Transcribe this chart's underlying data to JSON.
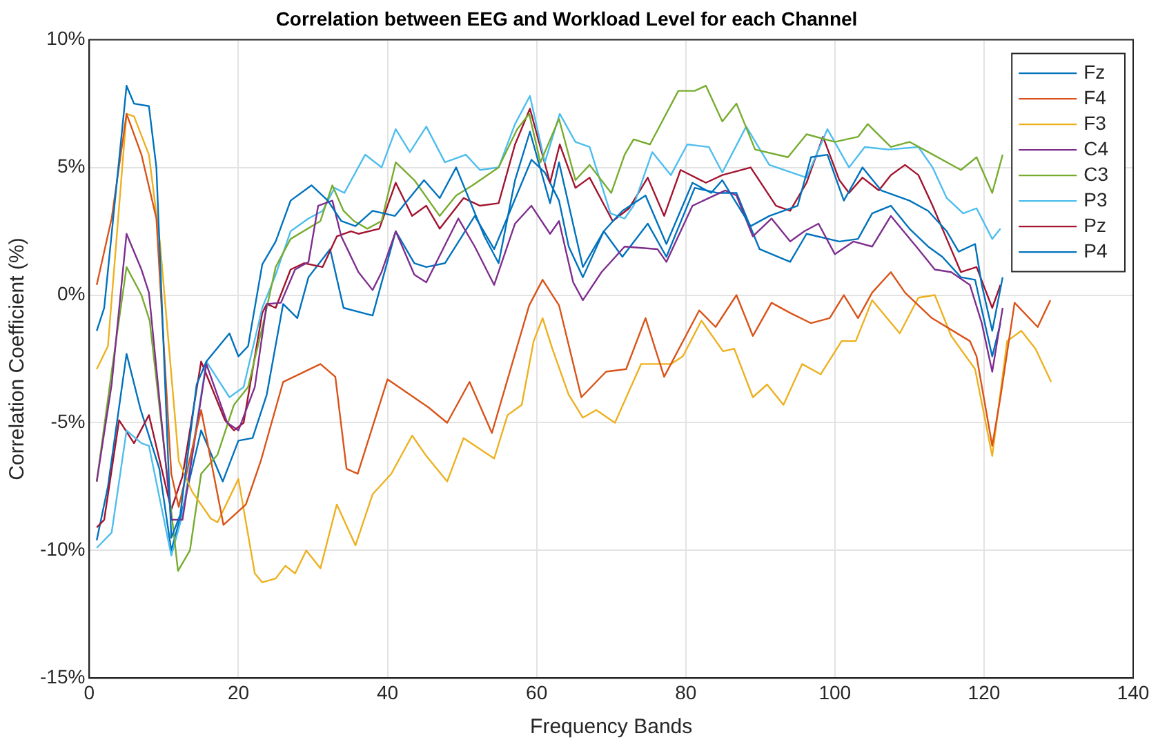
{
  "chart_data": {
    "type": "line",
    "title": "Correlation between EEG and Workload Level for each Channel",
    "xlabel": "Frequency Bands",
    "ylabel": "Correlation Coefficient (%)",
    "xlim": [
      0,
      140
    ],
    "xticks": [
      0,
      20,
      40,
      60,
      80,
      100,
      120,
      140
    ],
    "ylim": [
      -15,
      10
    ],
    "yticks": [
      {
        "value": -15,
        "label": "-15%"
      },
      {
        "value": -10,
        "label": "-10%"
      },
      {
        "value": -5,
        "label": "-5%"
      },
      {
        "value": 0,
        "label": "0%"
      },
      {
        "value": 5,
        "label": "5%"
      },
      {
        "value": 10,
        "label": "10%"
      }
    ],
    "grid": true,
    "legend": "top right",
    "marker": "none",
    "line_style": "solid",
    "series": [
      {
        "name": "Fz",
        "color": "#0072bd",
        "x": [
          1,
          2,
          5,
          6,
          8,
          9,
          11,
          12.2,
          14.4,
          15.7,
          18.8,
          20,
          21.3,
          23.2,
          25,
          27,
          29.8,
          32,
          33.8,
          35.7,
          38,
          41,
          44.9,
          47,
          49.2,
          53,
          54.9,
          57.1,
          59.1,
          61.8,
          63,
          66.2,
          69,
          71.5,
          74.6,
          77.4,
          80.9,
          83.4,
          84.9,
          88.7,
          91.2,
          95,
          96.8,
          99,
          101.2,
          103.7,
          106.2,
          110,
          112.5,
          115,
          116.6,
          118.8,
          119.7,
          121.1,
          122.5
        ],
        "values": [
          -1.4,
          -0.5,
          8.2,
          7.5,
          7.4,
          5,
          -9.5,
          -8.6,
          -3.5,
          -2.6,
          -1.5,
          -2.4,
          -2,
          1.2,
          2.1,
          3.7,
          4.3,
          3.7,
          2.9,
          2.7,
          3.3,
          3.1,
          4.5,
          3.8,
          5,
          2.3,
          1.25,
          4.5,
          6.4,
          3.6,
          5.2,
          1.1,
          2.5,
          3.3,
          3.9,
          2,
          4.4,
          4,
          4.5,
          2.7,
          3.1,
          3.5,
          5.4,
          5.5,
          3.7,
          5,
          4.1,
          3.7,
          3.3,
          2.5,
          1.7,
          2,
          0.4,
          -1.4,
          0.7
        ]
      },
      {
        "name": "F4",
        "color": "#d95319",
        "x": [
          1,
          3,
          5,
          7,
          9,
          11,
          12,
          15,
          18,
          21,
          23,
          26,
          31,
          33,
          34.5,
          36,
          40,
          45.5,
          48,
          51,
          54,
          59,
          60.8,
          63,
          66,
          69.3,
          72,
          74.6,
          77.1,
          81.8,
          84,
          86.8,
          89,
          91.5,
          94,
          96.8,
          99.3,
          101.2,
          103.1,
          105,
          107.5,
          109.4,
          113,
          118.1,
          119,
          121.1,
          122.2,
          124.1,
          127.2,
          128.9
        ],
        "values": [
          0.4,
          3,
          7.1,
          5.5,
          3,
          -7,
          -8.3,
          -4.5,
          -9,
          -8.2,
          -6.5,
          -3.4,
          -2.7,
          -3.2,
          -6.8,
          -7,
          -3.3,
          -4.4,
          -5,
          -3.4,
          -5.4,
          -0.4,
          0.6,
          -0.4,
          -4,
          -3,
          -2.9,
          -0.9,
          -3.2,
          -0.6,
          -1.25,
          0,
          -1.6,
          -0.3,
          -0.7,
          -1.1,
          -0.9,
          0,
          -0.9,
          0.1,
          0.9,
          0.1,
          -0.9,
          -1.8,
          -2.4,
          -5.9,
          -4,
          -0.3,
          -1.25,
          -0.2
        ]
      },
      {
        "name": "F3",
        "color": "#edb120",
        "x": [
          1,
          2.5,
          5,
          6,
          8,
          9.5,
          12,
          13.8,
          16.3,
          17.2,
          20,
          22.2,
          23.2,
          25,
          26.3,
          27.6,
          29.1,
          31,
          33.2,
          35.7,
          38,
          40.5,
          43.3,
          45.2,
          48,
          50.2,
          54.3,
          56.1,
          58,
          59.6,
          60.8,
          62.1,
          64.3,
          66.2,
          68,
          70.5,
          74,
          78,
          79.6,
          82.1,
          85,
          86.5,
          89,
          90.9,
          93.1,
          95.6,
          98.1,
          100.9,
          102.8,
          105,
          108.7,
          111.2,
          113.4,
          115.6,
          118.8,
          121.1,
          123.1,
          125,
          126.9,
          129
        ],
        "values": [
          -2.9,
          -2,
          7.1,
          7,
          5.5,
          2,
          -6.5,
          -7.7,
          -8.75,
          -8.9,
          -7.2,
          -10.9,
          -11.25,
          -11.1,
          -10.6,
          -10.9,
          -10,
          -10.7,
          -8.2,
          -9.8,
          -7.8,
          -7,
          -5.5,
          -6.3,
          -7.3,
          -5.6,
          -6.4,
          -4.7,
          -4.3,
          -1.8,
          -0.9,
          -2.1,
          -3.9,
          -4.8,
          -4.5,
          -5,
          -2.7,
          -2.7,
          -2.4,
          -1,
          -2.2,
          -2.1,
          -4,
          -3.5,
          -4.3,
          -2.7,
          -3.1,
          -1.8,
          -1.8,
          -0.2,
          -1.5,
          -0.1,
          0,
          -1.6,
          -2.9,
          -6.3,
          -1.8,
          -1.4,
          -2.1,
          -3.4
        ]
      },
      {
        "name": "C4",
        "color": "#7e2f8e",
        "x": [
          1,
          3,
          5,
          7,
          8,
          11,
          12.5,
          15.7,
          18.5,
          20,
          22.2,
          23.8,
          25.7,
          27.6,
          29.4,
          30.7,
          32.6,
          33.8,
          36.1,
          38,
          39.2,
          41.1,
          43.6,
          45.2,
          49.5,
          51.7,
          54.3,
          57.1,
          59.3,
          61.8,
          63,
          64.9,
          66.2,
          68.7,
          71.8,
          76.2,
          77.4,
          80.9,
          85.3,
          86.8,
          89,
          91.5,
          94,
          95.9,
          97.8,
          100,
          102.5,
          105,
          107.5,
          111.2,
          113.4,
          115.6,
          118.1,
          119.7,
          121.1,
          122.5
        ],
        "values": [
          -7.3,
          -3.5,
          2.4,
          1,
          0.1,
          -8.8,
          -8.8,
          -2.7,
          -5,
          -5.3,
          -3.6,
          -0.35,
          -0.3,
          1,
          1.3,
          3.5,
          3.7,
          2.3,
          0.9,
          0.2,
          0.9,
          2.5,
          0.8,
          0.5,
          3,
          1.9,
          0.4,
          2.8,
          3.5,
          2.4,
          2.9,
          0.5,
          -0.2,
          0.9,
          1.9,
          1.8,
          1.3,
          3.5,
          4.1,
          3.9,
          2.3,
          3,
          2.1,
          2.5,
          2.8,
          1.6,
          2.1,
          1.9,
          3.1,
          1.8,
          1,
          0.9,
          0.4,
          -1.1,
          -3,
          -0.5
        ]
      },
      {
        "name": "C3",
        "color": "#77ac30",
        "x": [
          1,
          3,
          5,
          7,
          8.1,
          11.9,
          13.5,
          15,
          17.2,
          19.4,
          21.3,
          23.5,
          25,
          27,
          31,
          32.6,
          34.1,
          35.5,
          37.3,
          39.2,
          41.1,
          43.6,
          47,
          49.2,
          51.4,
          54.9,
          57.4,
          59,
          60.5,
          63,
          65.2,
          67.1,
          70,
          71.8,
          73,
          75.2,
          79,
          81.2,
          82.7,
          84.9,
          86.8,
          89.3,
          93.7,
          96.2,
          100,
          103.1,
          104.4,
          107.5,
          110,
          111.9,
          116.9,
          119,
          121.1,
          122.5
        ],
        "values": [
          -7.3,
          -3,
          1.1,
          0,
          -1,
          -10.8,
          -10,
          -7,
          -6.25,
          -4.3,
          -3.6,
          -0.9,
          1.1,
          2.2,
          2.9,
          4.3,
          3.3,
          2.9,
          2.6,
          2.9,
          5.2,
          4.5,
          3.1,
          3.9,
          4.3,
          5,
          6.5,
          7.1,
          5.2,
          6.9,
          4.5,
          5.1,
          4,
          5.5,
          6.1,
          5.9,
          8,
          8,
          8.2,
          6.8,
          7.5,
          5.7,
          5.4,
          6.3,
          6,
          6.2,
          6.7,
          5.8,
          6,
          5.7,
          4.9,
          5.4,
          4,
          5.5
        ]
      },
      {
        "name": "P3",
        "color": "#4dbeee",
        "x": [
          1,
          3,
          5,
          7,
          8,
          11,
          12.5,
          15.7,
          18.8,
          20.7,
          23.2,
          25,
          27,
          29.4,
          31.3,
          32.9,
          34.2,
          37,
          39.2,
          41.1,
          43,
          45.2,
          47.7,
          50.5,
          52.4,
          54.9,
          57.1,
          59.1,
          61.1,
          63.1,
          65.2,
          67.1,
          69.9,
          71.8,
          73,
          75.5,
          78,
          80.2,
          83.1,
          84.9,
          88.1,
          91.2,
          96.2,
          99,
          101.9,
          104,
          107.2,
          111.2,
          113.1,
          115,
          117.2,
          119,
          121.1,
          122.2
        ],
        "values": [
          -9.9,
          -9.3,
          -5.3,
          -5.8,
          -5.9,
          -10.2,
          -8.6,
          -2.6,
          -4,
          -3.6,
          -0.5,
          0.8,
          2.5,
          3,
          3.3,
          4.2,
          4,
          5.5,
          5,
          6.5,
          5.6,
          6.6,
          5.2,
          5.5,
          4.9,
          5,
          6.7,
          7.8,
          5.2,
          7.1,
          6,
          5.8,
          3.2,
          3,
          3.5,
          5.6,
          4.7,
          5.9,
          5.8,
          4.8,
          6.6,
          5.1,
          4.6,
          6.5,
          5,
          5.8,
          5.7,
          5.8,
          5,
          3.8,
          3.2,
          3.4,
          2.2,
          2.6
        ]
      },
      {
        "name": "Pz",
        "color": "#a2142f",
        "x": [
          1,
          2,
          4,
          6,
          8,
          11,
          12.5,
          15,
          18.2,
          19.4,
          20.7,
          23.2,
          23.8,
          25,
          27,
          28.8,
          31.3,
          33.2,
          35.1,
          36.1,
          38.9,
          41.1,
          43.3,
          45.2,
          47,
          50.2,
          52.4,
          54.9,
          57.1,
          59.1,
          61.8,
          63.1,
          65.2,
          67.1,
          70.2,
          72.4,
          74.9,
          77.1,
          79.3,
          82.7,
          84.9,
          88.7,
          92.1,
          94,
          96.2,
          98.4,
          100.6,
          101.9,
          103.7,
          105.9,
          107.5,
          109.4,
          111.2,
          113.1,
          115,
          116.9,
          119,
          121.1,
          122.2
        ],
        "values": [
          -9.1,
          -8.8,
          -4.9,
          -5.8,
          -4.7,
          -8.4,
          -7.1,
          -2.6,
          -4.9,
          -5.3,
          -5,
          -0.7,
          -0.35,
          -0.5,
          1,
          1.25,
          1.1,
          2.3,
          2.5,
          2.4,
          2.6,
          4.4,
          3.1,
          3.5,
          2.6,
          3.8,
          3.5,
          3.6,
          5.9,
          7.3,
          4.4,
          5.9,
          4.2,
          4.6,
          2.9,
          3.4,
          4.6,
          3.1,
          4.9,
          4.4,
          4.7,
          5,
          3.5,
          3.3,
          4.4,
          6.2,
          4.5,
          4,
          4.6,
          4.1,
          4.7,
          5.1,
          4.7,
          3.5,
          2.2,
          0.9,
          1.1,
          -0.5,
          0.4
        ]
      },
      {
        "name": "P4",
        "color": "#0072bd",
        "x": [
          1,
          2.5,
          5,
          6.9,
          9.4,
          11,
          12.5,
          15,
          17.9,
          20,
          21.9,
          23.8,
          26,
          27.9,
          29.4,
          32.3,
          34.1,
          38,
          41.1,
          43.6,
          45.2,
          47.7,
          51.7,
          54.3,
          59.3,
          61.1,
          63,
          64.3,
          66.2,
          69,
          71.5,
          74.9,
          77.4,
          81.2,
          84.3,
          86.8,
          89.9,
          94,
          96.2,
          100.6,
          103.1,
          105,
          107.5,
          110,
          112.5,
          114.4,
          116.9,
          118.8,
          121.1,
          122.2
        ],
        "values": [
          -9.6,
          -7.5,
          -2.3,
          -4.5,
          -6.8,
          -10,
          -8.4,
          -5.3,
          -7.3,
          -5.7,
          -5.6,
          -3.9,
          -0.35,
          -0.9,
          0.7,
          1.8,
          -0.5,
          -0.8,
          2.5,
          1.25,
          1.1,
          1.25,
          3.1,
          1.8,
          5.3,
          4.8,
          3.7,
          1.9,
          0.7,
          2.5,
          1.5,
          2.8,
          1.5,
          4.2,
          4,
          4,
          1.8,
          1.3,
          2.4,
          2.1,
          2.2,
          3.2,
          3.5,
          2.6,
          1.9,
          1.5,
          0.7,
          0.6,
          -2.4,
          -1.1
        ]
      }
    ]
  }
}
